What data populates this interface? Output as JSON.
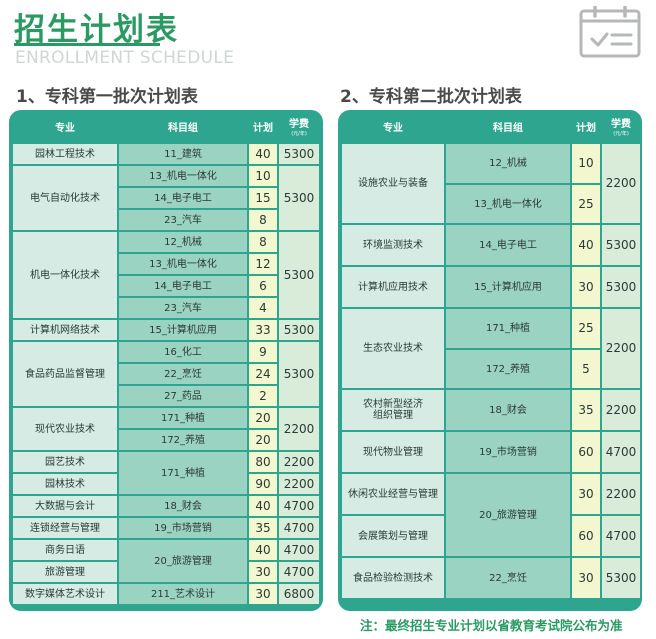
{
  "header": {
    "title": "招生计划表",
    "subtitle": "ENROLLMENT SCHEDULE",
    "icon": "calendar-check-icon"
  },
  "table1": {
    "heading": "1、专科第一批次计划表",
    "columns": [
      "专业",
      "科目组",
      "计划",
      "学费",
      "(元/年)"
    ],
    "rows": [
      {
        "major": "园林工程技术",
        "subject": "11_建筑",
        "plan": "40",
        "fee": "5300"
      },
      {
        "major": "电气自动化技术",
        "subject": "13_机电一体化",
        "plan": "10",
        "fee": "5300"
      },
      {
        "major": "",
        "subject": "14_电子电工",
        "plan": "15",
        "fee": ""
      },
      {
        "major": "",
        "subject": "23_汽车",
        "plan": "8",
        "fee": ""
      },
      {
        "major": "机电一体化技术",
        "subject": "12_机械",
        "plan": "8",
        "fee": "5300"
      },
      {
        "major": "",
        "subject": "13_机电一体化",
        "plan": "12",
        "fee": ""
      },
      {
        "major": "",
        "subject": "14_电子电工",
        "plan": "6",
        "fee": ""
      },
      {
        "major": "",
        "subject": "23_汽车",
        "plan": "4",
        "fee": ""
      },
      {
        "major": "计算机网络技术",
        "subject": "15_计算机应用",
        "plan": "33",
        "fee": "5300"
      },
      {
        "major": "食品药品监督管理",
        "subject": "16_化工",
        "plan": "9",
        "fee": "5300"
      },
      {
        "major": "",
        "subject": "22_烹饪",
        "plan": "24",
        "fee": ""
      },
      {
        "major": "",
        "subject": "27_药品",
        "plan": "2",
        "fee": ""
      },
      {
        "major": "现代农业技术",
        "subject": "171_种植",
        "plan": "20",
        "fee": "2200"
      },
      {
        "major": "",
        "subject": "172_养殖",
        "plan": "20",
        "fee": ""
      },
      {
        "major": "园艺技术",
        "subject": "171_种植",
        "plan": "80",
        "fee": "2200"
      },
      {
        "major": "园林技术",
        "subject": "",
        "plan": "90",
        "fee": "2200"
      },
      {
        "major": "大数据与会计",
        "subject": "18_财会",
        "plan": "40",
        "fee": "4700"
      },
      {
        "major": "连锁经营与管理",
        "subject": "19_市场营销",
        "plan": "35",
        "fee": "4700"
      },
      {
        "major": "商务日语",
        "subject": "20_旅游管理",
        "plan": "40",
        "fee": "4700"
      },
      {
        "major": "旅游管理",
        "subject": "",
        "plan": "30",
        "fee": "4700"
      },
      {
        "major": "数字媒体艺术设计",
        "subject": "211_艺术设计",
        "plan": "30",
        "fee": "6800"
      }
    ]
  },
  "table2": {
    "heading": "2、专科第二批次计划表",
    "columns": [
      "专业",
      "科目组",
      "计划",
      "学费",
      "(元/年)"
    ],
    "rows": [
      {
        "major": "设施农业与装备",
        "subject": "12_机械",
        "plan": "10",
        "fee": "2200"
      },
      {
        "major": "",
        "subject": "13_机电一体化",
        "plan": "25",
        "fee": ""
      },
      {
        "major": "环境监测技术",
        "subject": "14_电子电工",
        "plan": "40",
        "fee": "5300"
      },
      {
        "major": "计算机应用技术",
        "subject": "15_计算机应用",
        "plan": "30",
        "fee": "5300"
      },
      {
        "major": "生态农业技术",
        "subject": "171_种植",
        "plan": "25",
        "fee": "2200"
      },
      {
        "major": "",
        "subject": "172_养殖",
        "plan": "5",
        "fee": ""
      },
      {
        "major": "农村新型经济",
        "major2": "组织管理",
        "subject": "18_财会",
        "plan": "35",
        "fee": "2200"
      },
      {
        "major": "现代物业管理",
        "subject": "19_市场营销",
        "plan": "60",
        "fee": "4700"
      },
      {
        "major": "休闲农业经营与管理",
        "subject": "20_旅游管理",
        "plan": "30",
        "fee": "2200"
      },
      {
        "major": "会展策划与管理",
        "subject": "",
        "plan": "60",
        "fee": "4700"
      },
      {
        "major": "食品检验检测技术",
        "subject": "22_烹饪",
        "plan": "30",
        "fee": "5300"
      }
    ]
  },
  "footer": {
    "note": "注：最终招生专业计划以省教育考试院公布为准"
  },
  "colors": {
    "brand_green": "#2a9a62",
    "table_teal": "#2ea58e",
    "major_cell": "#d5ebe3",
    "subject_cell": "#9bd3c3",
    "plan_cell": "#f2f7d0",
    "fee_cell": "#d8ecd9"
  }
}
